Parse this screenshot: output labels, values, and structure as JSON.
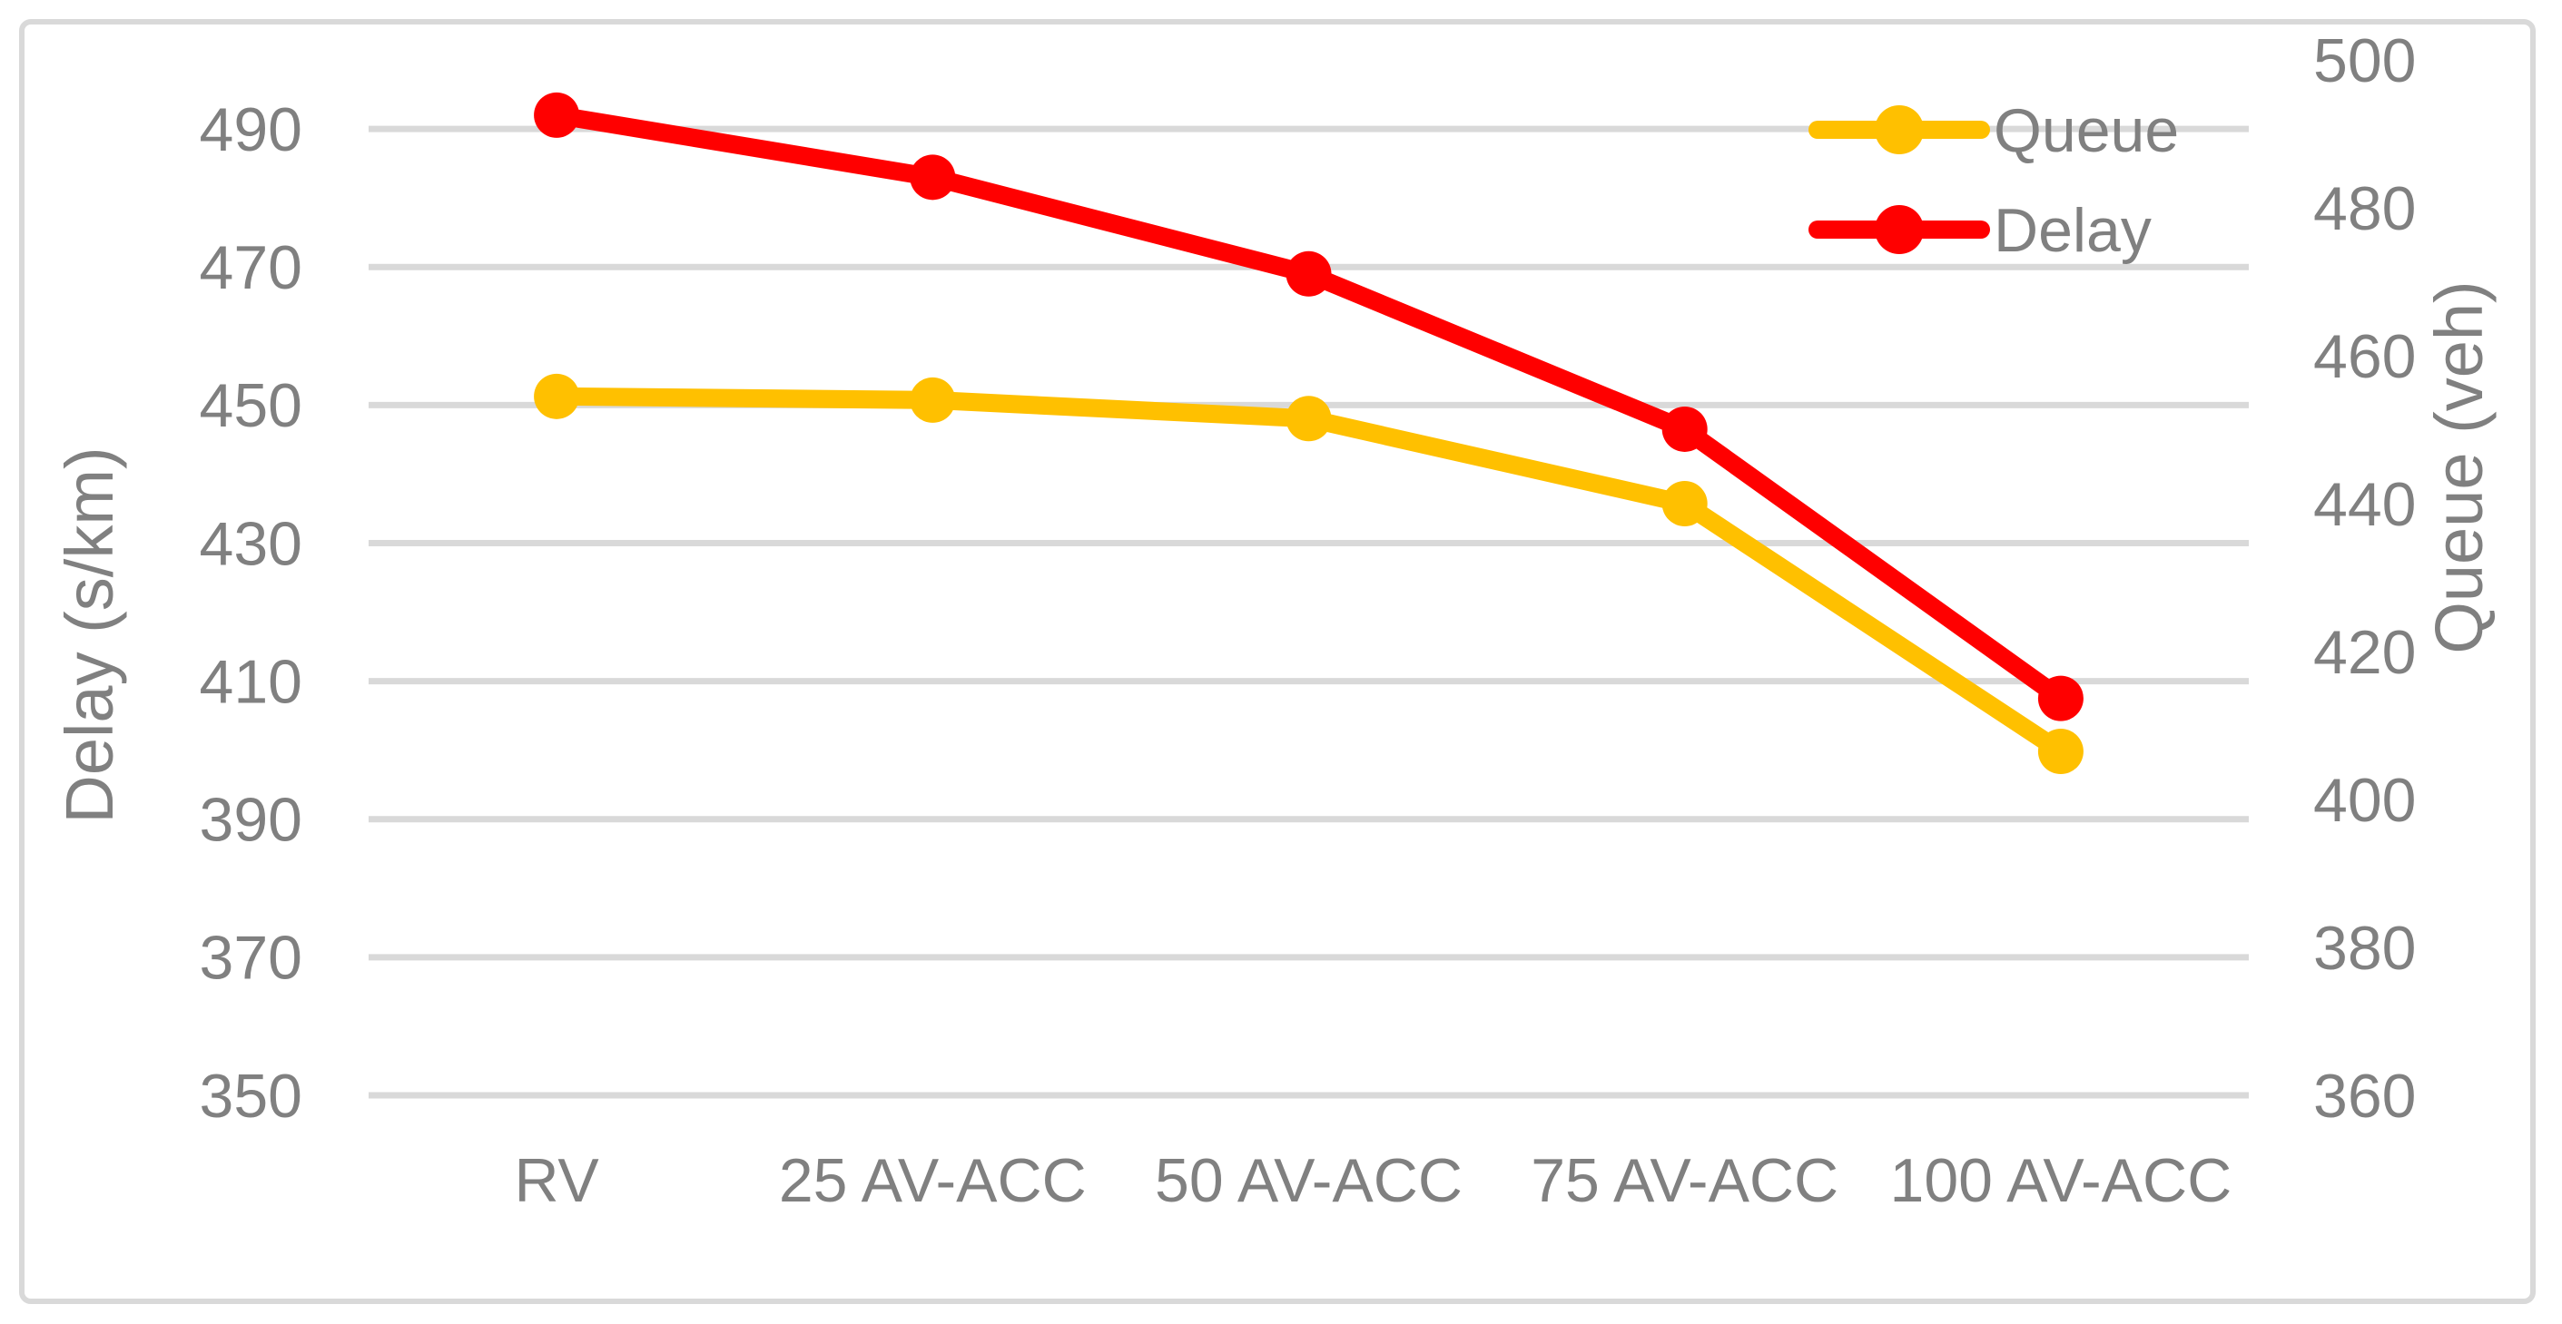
{
  "chart_data": {
    "type": "line",
    "title": "",
    "categories": [
      "RV",
      "25 AV-ACC",
      "50 AV-ACC",
      "75 AV-ACC",
      "100 AV-ACC"
    ],
    "series": [
      {
        "name": "Queue",
        "axis": "right",
        "color": "#FFC000",
        "values": [
          454.5,
          454,
          451.5,
          440,
          406.5
        ]
      },
      {
        "name": "Delay",
        "axis": "left",
        "color": "#FF0000",
        "values": [
          492,
          483,
          469,
          446.5,
          407.5
        ]
      }
    ],
    "left_axis": {
      "label": "Delay (s/km)",
      "min": 350,
      "max": 500,
      "major_unit": 20,
      "tick_labels": [
        350,
        370,
        390,
        410,
        430,
        450,
        470,
        490
      ]
    },
    "right_axis": {
      "label": "Queue (veh)",
      "min": 360,
      "max": 500,
      "major_unit": 20,
      "tick_labels": [
        360,
        380,
        400,
        420,
        440,
        460,
        480,
        500
      ]
    },
    "legend": {
      "position": "top-right",
      "entries": [
        "Queue",
        "Delay"
      ]
    },
    "grid": true,
    "styles": {
      "grid_color": "#D9D9D9",
      "border_color": "#D9D9D9",
      "text_color": "#808080",
      "background": "#FFFFFF",
      "line_width": 20,
      "marker_radius": 25
    }
  }
}
